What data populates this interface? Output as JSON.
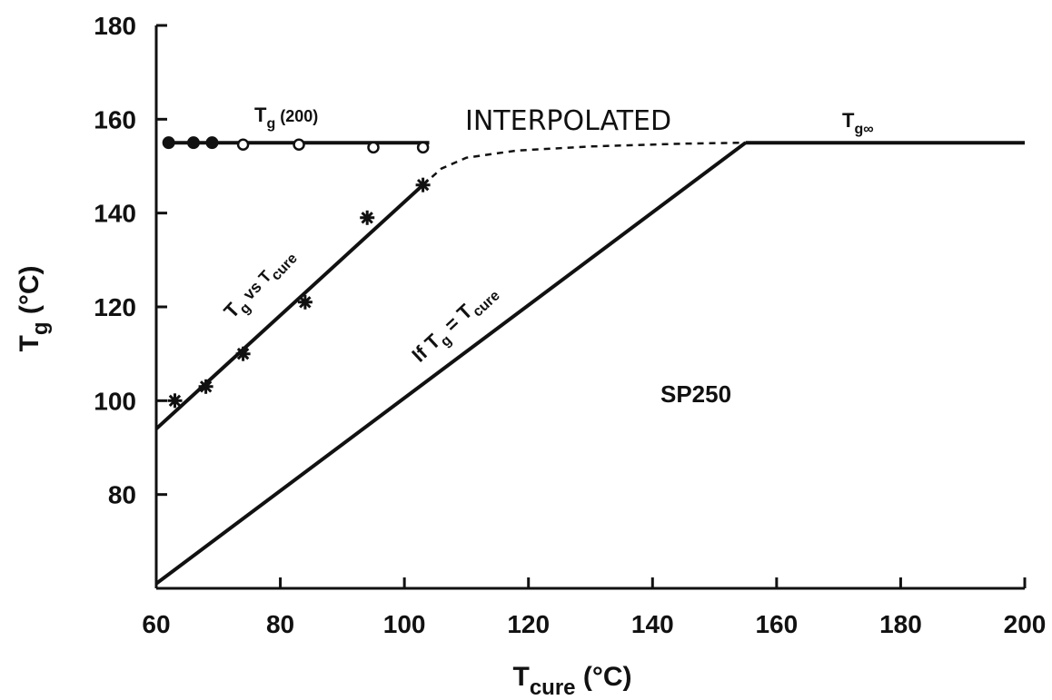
{
  "chart_data": {
    "type": "line",
    "xlabel": {
      "main": "T",
      "sub": "cure",
      "unit": "(°C)"
    },
    "ylabel": {
      "main": "T",
      "sub": "g",
      "unit": "(°C)"
    },
    "xlim": [
      60,
      200
    ],
    "ylim": [
      60,
      180
    ],
    "x_ticks": [
      60,
      80,
      100,
      120,
      140,
      160,
      180,
      200
    ],
    "y_ticks": [
      80,
      100,
      120,
      140,
      160,
      180
    ],
    "grid": false,
    "colors": {
      "ink": "#111111"
    },
    "series": [
      {
        "role": "tg200-line",
        "line": [
          [
            62,
            155
          ],
          [
            104,
            155
          ]
        ],
        "points_filled": [
          [
            62,
            155
          ],
          [
            66,
            155
          ],
          [
            69,
            155
          ]
        ],
        "points_open": [
          [
            74,
            154.6
          ],
          [
            83,
            154.6
          ],
          [
            95,
            154
          ],
          [
            103,
            154
          ]
        ]
      },
      {
        "role": "tg-vs-tcure",
        "line": [
          [
            60,
            94
          ],
          [
            103,
            146
          ]
        ],
        "points_star": [
          [
            63,
            100
          ],
          [
            68,
            103
          ],
          [
            74,
            110
          ],
          [
            84,
            121
          ],
          [
            94,
            139
          ],
          [
            103,
            146
          ]
        ]
      },
      {
        "role": "interpolated",
        "curve": [
          [
            103,
            146
          ],
          [
            106,
            149.5
          ],
          [
            110,
            151.8
          ],
          [
            118,
            153.3
          ],
          [
            130,
            154.2
          ],
          [
            145,
            154.8
          ],
          [
            155,
            155
          ]
        ]
      },
      {
        "role": "tg-equals-tcure",
        "line": [
          [
            60,
            61
          ],
          [
            155,
            155
          ]
        ]
      },
      {
        "role": "tg-infinity",
        "line": [
          [
            155,
            155
          ],
          [
            200,
            155
          ]
        ]
      }
    ],
    "annotations": {
      "tg200": {
        "main": "T",
        "sub": "g",
        "rest": " (200)"
      },
      "interpolated": "INTERPOLATED",
      "tginf": {
        "main": "T",
        "sub": "g∞"
      },
      "tg_vs_tcure": {
        "main": "T",
        "sub1": "g",
        "mid": " vs T",
        "sub2": "cure"
      },
      "if_tg_eq": {
        "pre": "If  T",
        "sub1": "g",
        "mid": " = T",
        "sub2": "cure"
      },
      "material": "SP250"
    }
  }
}
